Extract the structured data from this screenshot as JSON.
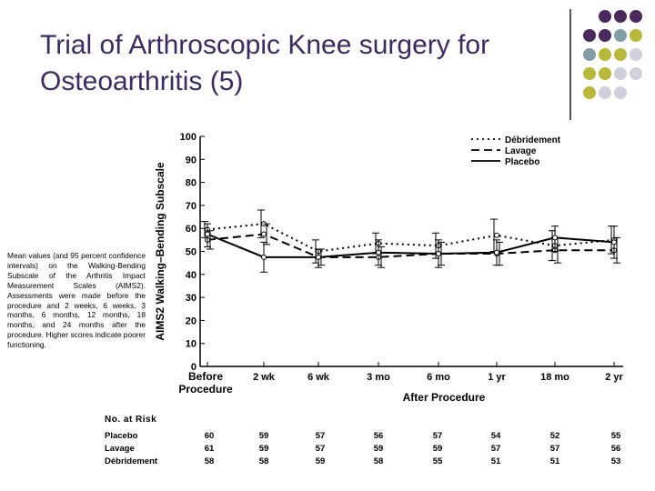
{
  "slide": {
    "title": "Trial of Arthroscopic Knee surgery for Osteoarthritis (5)",
    "caption": "Mean values (and 95 percent confidence intervals) on the Walking-Bending Subscale of the Arthritis Impact Measurement Scales (AIMS2). Assessments were made before the procedure and 2 weeks, 6 weeks, 3 months, 6 months, 12 months, 18 months, and 24 months after the procedure. Higher scores indicate poorer functioning.",
    "decor_colors": [
      "#4a2a5c",
      "#7f9ea5",
      "#b8b83a",
      "#d0d0dc"
    ]
  },
  "chart_data": {
    "type": "line",
    "ylabel": "AIMS2 Walking–Bending Subscale",
    "xlabel": "After Procedure",
    "ylim": [
      0,
      100
    ],
    "yticks": [
      "0",
      "10",
      "20",
      "30",
      "40",
      "50",
      "60",
      "70",
      "80",
      "90",
      "100"
    ],
    "categories": [
      "Before Procedure",
      "2 wk",
      "6 wk",
      "3 mo",
      "6 mo",
      "1 yr",
      "18 mo",
      "2 yr"
    ],
    "grid": false,
    "legend_position": "top-right",
    "series": [
      {
        "name": "Débridement",
        "style": "dotted",
        "values": [
          59.5,
          62,
          50,
          53.5,
          52.5,
          57,
          52.5,
          55
        ],
        "ci": [
          [
            56,
            63
          ],
          [
            56,
            68
          ],
          [
            45,
            55
          ],
          [
            49,
            58
          ],
          [
            47,
            58
          ],
          [
            50,
            64
          ],
          [
            46,
            59
          ],
          [
            49,
            61
          ]
        ]
      },
      {
        "name": "Lavage",
        "style": "dashed",
        "values": [
          55,
          57.5,
          47.5,
          47.5,
          49,
          49,
          50.5,
          50.5
        ],
        "ci": [
          [
            51,
            59
          ],
          [
            53,
            62
          ],
          [
            44,
            51
          ],
          [
            43,
            52
          ],
          [
            44,
            54
          ],
          [
            44,
            54
          ],
          [
            45,
            56
          ],
          [
            45,
            56
          ]
        ]
      },
      {
        "name": "Placebo",
        "style": "solid",
        "values": [
          57.5,
          47.5,
          47.5,
          49.5,
          49,
          49.5,
          56,
          54
        ],
        "ci": [
          [
            52,
            62
          ],
          [
            41,
            54
          ],
          [
            43,
            51
          ],
          [
            44,
            55
          ],
          [
            43,
            55
          ],
          [
            44,
            55
          ],
          [
            50,
            61
          ],
          [
            47,
            61
          ]
        ]
      }
    ]
  },
  "at_risk": {
    "header": "No. at Risk",
    "rows": [
      {
        "label": "Placebo",
        "values": [
          "60",
          "59",
          "57",
          "56",
          "57",
          "54",
          "52",
          "55"
        ]
      },
      {
        "label": "Lavage",
        "values": [
          "61",
          "59",
          "57",
          "59",
          "59",
          "57",
          "57",
          "56"
        ]
      },
      {
        "label": "Débridement",
        "values": [
          "58",
          "58",
          "59",
          "58",
          "55",
          "51",
          "51",
          "53"
        ]
      }
    ]
  }
}
